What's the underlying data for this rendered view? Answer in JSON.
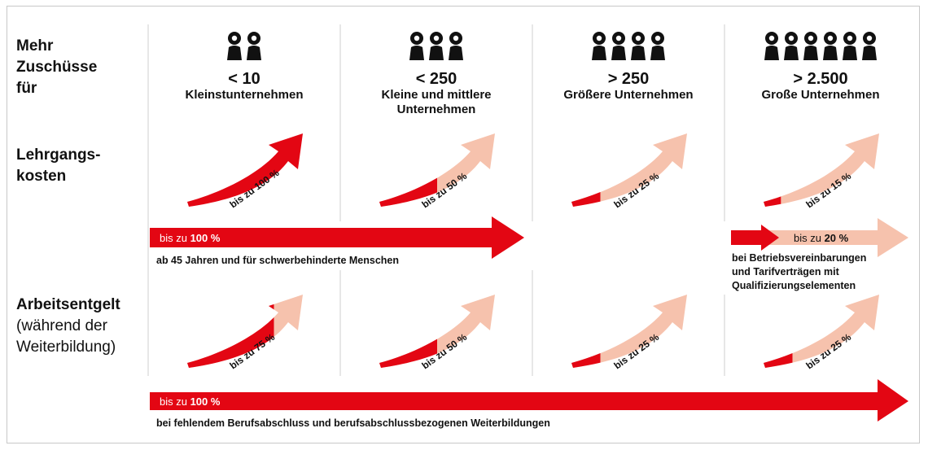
{
  "row_labels": {
    "mehr": [
      "Mehr",
      "Zuschüsse",
      "für"
    ],
    "lehrgang": [
      "Lehrgangs-",
      "kosten"
    ],
    "arbeit_title": "Arbeitsentgelt",
    "arbeit_sub": [
      "(während der",
      "Weiterbildung)"
    ]
  },
  "columns": [
    {
      "count": "< 10",
      "name": [
        "Kleinstunternehmen"
      ],
      "people": 2,
      "course_pct": 100,
      "course_label": "bis zu 100 %",
      "wage_pct": 75,
      "wage_label": "bis zu 75 %"
    },
    {
      "count": "< 250",
      "name": [
        "Kleine und mittlere",
        "Unternehmen"
      ],
      "people": 3,
      "course_pct": 50,
      "course_label": "bis zu 50 %",
      "wage_pct": 50,
      "wage_label": "bis zu 50 %"
    },
    {
      "count": "> 250",
      "name": [
        "Größere Unternehmen"
      ],
      "people": 4,
      "course_pct": 25,
      "course_label": "bis zu 25 %",
      "wage_pct": 25,
      "wage_label": "bis zu 25 %"
    },
    {
      "count": "> 2.500",
      "name": [
        "Große Unternehmen"
      ],
      "people": 6,
      "course_pct": 15,
      "course_label": "bis zu 15 %",
      "wage_pct": 25,
      "wage_label": "bis zu 25 %"
    }
  ],
  "banners": {
    "age": {
      "prefix": "bis zu ",
      "value": "100 %",
      "note": "ab 45 Jahren und für schwerbehinderte Menschen"
    },
    "tarif": {
      "prefix": "bis zu ",
      "value": "20 %",
      "note": [
        "bei Betriebsvereinbarungen",
        "und Tarifverträgen mit",
        "Qualifizierungselementen"
      ]
    },
    "beruf": {
      "prefix": "bis zu ",
      "value": "100 %",
      "note": "bei fehlendem Berufsabschluss und berufsabschlussbezogenen Weiterbildungen"
    }
  },
  "colors": {
    "red": "#e30613",
    "light": "#f6c2ad",
    "text": "#111111",
    "divider": "#cfcfcf"
  },
  "icons": {
    "person": "person-icon",
    "arrow": "growth-arrow-icon"
  }
}
